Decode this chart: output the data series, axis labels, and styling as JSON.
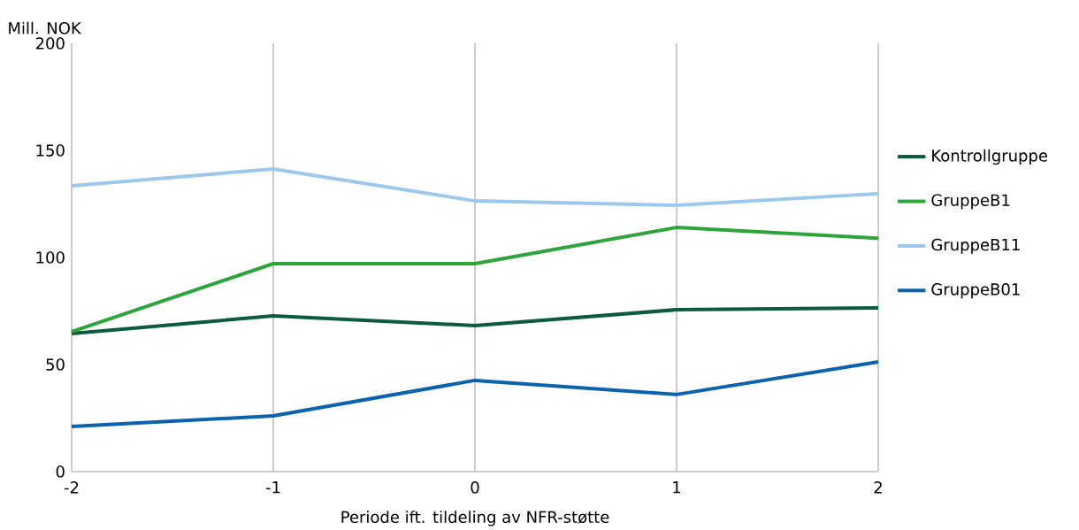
{
  "chart_data": {
    "type": "line",
    "ylabel": "Mill. NOK",
    "xlabel": "Periode ift. tildeling av NFR-støtte",
    "x": [
      -2,
      -1,
      0,
      1,
      2
    ],
    "xlim": [
      -2,
      2
    ],
    "xticks": [
      -2,
      -1,
      0,
      1,
      2
    ],
    "ylim": [
      0,
      200
    ],
    "yticks": [
      0,
      50,
      100,
      150,
      200
    ],
    "grid": "x",
    "legend": "right",
    "marker": "none",
    "line_style": "solid",
    "series": [
      {
        "name": "Kontrollgruppe",
        "color": "#0b5a41",
        "values": [
          64.5,
          72.7,
          68.2,
          75.6,
          76.4
        ]
      },
      {
        "name": "GruppeB1",
        "color": "#2ea53a",
        "values": [
          65.3,
          97.1,
          97.1,
          114,
          109
        ]
      },
      {
        "name": "GruppeB11",
        "color": "#9cc8ec",
        "values": [
          133.5,
          141.3,
          126.4,
          124.4,
          129.8
        ]
      },
      {
        "name": "GruppeB01",
        "color": "#0b63b0",
        "values": [
          21.1,
          26,
          42.6,
          36,
          51.2
        ]
      }
    ]
  }
}
